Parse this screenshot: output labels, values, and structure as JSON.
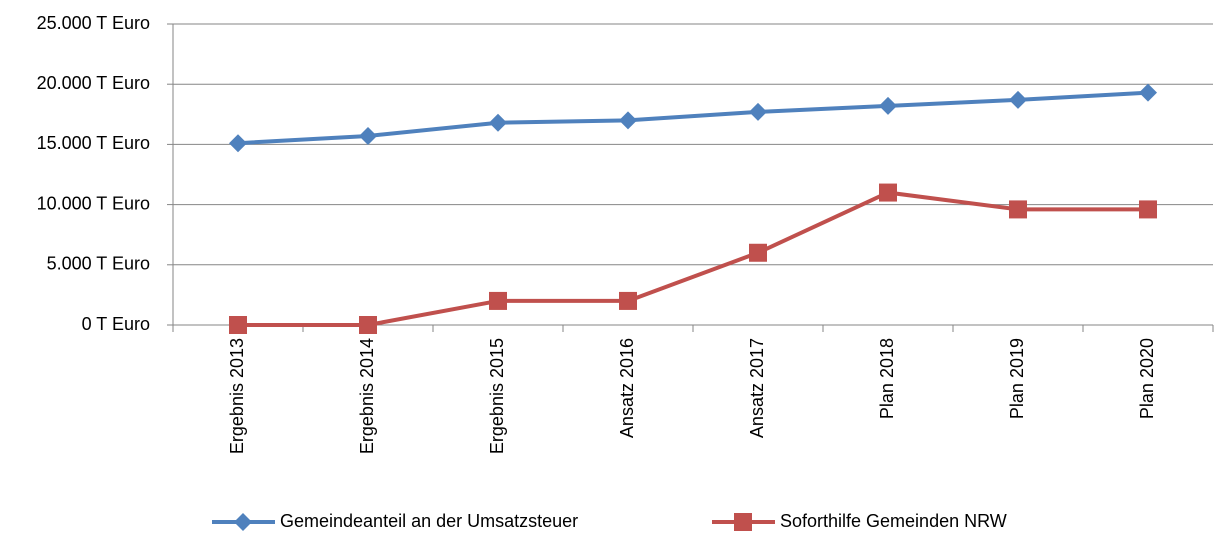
{
  "chart_data": {
    "type": "line",
    "categories": [
      "Ergebnis 2013",
      "Ergebnis 2014",
      "Ergebnis 2015",
      "Ansatz 2016",
      "Ansatz 2017",
      "Plan 2018",
      "Plan 2019",
      "Plan 2020"
    ],
    "series": [
      {
        "name": "Gemeindeanteil an der Umsatzsteuer",
        "color": "#4f81bd",
        "marker": "diamond",
        "values": [
          15100,
          15700,
          16800,
          17000,
          17700,
          18200,
          18700,
          19300
        ]
      },
      {
        "name": "Soforthilfe Gemeinden NRW",
        "color": "#c0504d",
        "marker": "square",
        "values": [
          0,
          0,
          2000,
          2000,
          6000,
          11000,
          9600,
          9600
        ]
      }
    ],
    "ylim": [
      0,
      25000
    ],
    "yticks": [
      {
        "value": 0,
        "label": "0 T Euro"
      },
      {
        "value": 5000,
        "label": "5.000 T Euro"
      },
      {
        "value": 10000,
        "label": "10.000 T Euro"
      },
      {
        "value": 15000,
        "label": "15.000 T Euro"
      },
      {
        "value": 20000,
        "label": "20.000 T Euro"
      },
      {
        "value": 25000,
        "label": "25.000 T Euro"
      }
    ],
    "grid": true,
    "legend": "bottom"
  }
}
